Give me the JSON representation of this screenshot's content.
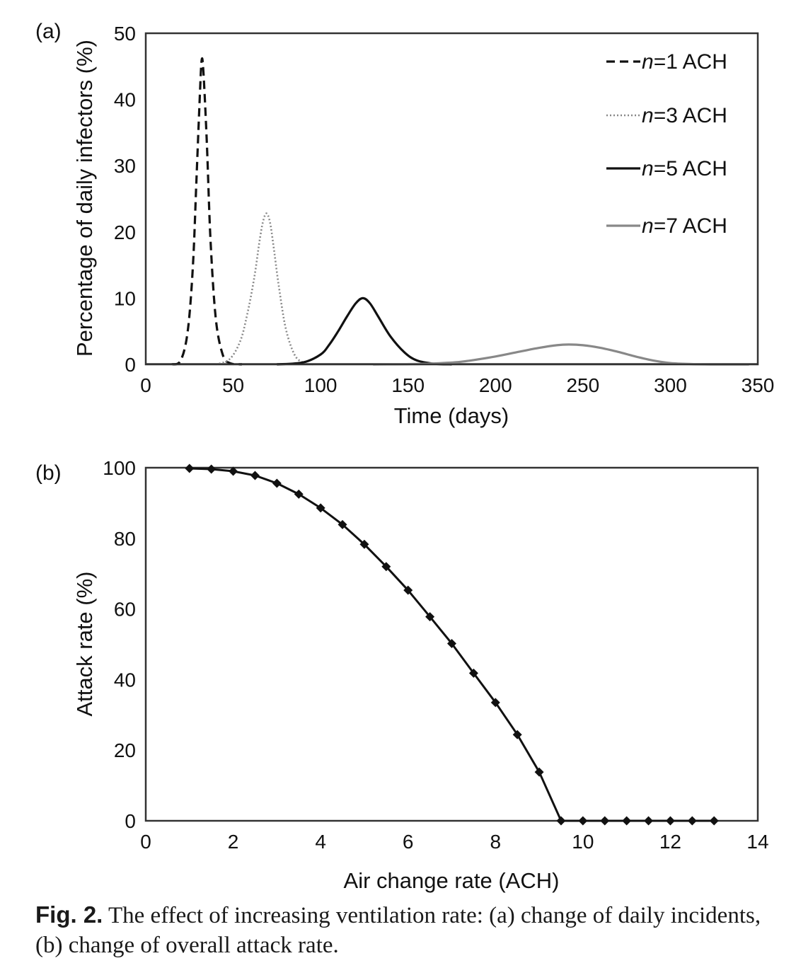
{
  "chart_data": [
    {
      "type": "line",
      "panel_label": "(a)",
      "xlabel": "Time (days)",
      "ylabel": "Percentage of daily infectors (%)",
      "xlim": [
        0,
        350
      ],
      "ylim": [
        0,
        50
      ],
      "xticks": [
        "0",
        "50",
        "100",
        "150",
        "200",
        "250",
        "300",
        "350"
      ],
      "yticks": [
        "0",
        "10",
        "20",
        "30",
        "40",
        "50"
      ],
      "grid": false,
      "legend": "top-right",
      "series": [
        {
          "name": "n=1 ACH",
          "name_italic": "n",
          "name_rest": "=1 ACH",
          "style": "dashed",
          "color": "#111111",
          "peak_x": 32,
          "peak_y": 46,
          "x": [
            15,
            20,
            24,
            27,
            29,
            31,
            32,
            33,
            35,
            37,
            40,
            44,
            48,
            55
          ],
          "y": [
            0,
            0.6,
            5,
            15,
            28,
            41,
            46,
            44,
            33,
            19,
            7,
            1.5,
            0.2,
            0
          ]
        },
        {
          "name": "n=3 ACH",
          "name_italic": "n",
          "name_rest": "=3 ACH",
          "style": "dotted",
          "color": "#888888",
          "x": [
            40,
            48,
            54,
            58,
            62,
            65,
            67,
            69,
            71,
            73,
            76,
            80,
            85,
            90,
            96
          ],
          "y": [
            0,
            0.8,
            3.5,
            7.5,
            13,
            18.5,
            21.5,
            22.8,
            21.5,
            18,
            12,
            5.5,
            1.5,
            0.3,
            0
          ]
        },
        {
          "name": "n=5 ACH",
          "name_italic": "n",
          "name_rest": "=5 ACH",
          "style": "solid",
          "color": "#111111",
          "x": [
            75,
            90,
            100,
            105,
            110,
            115,
            120,
            124,
            128,
            133,
            140,
            148,
            155,
            165,
            175
          ],
          "y": [
            0,
            0.3,
            1.5,
            3,
            5,
            7.2,
            9.2,
            10,
            9.3,
            7.2,
            4.2,
            1.8,
            0.6,
            0.1,
            0
          ]
        },
        {
          "name": "n=7 ACH",
          "name_italic": "n",
          "name_rest": "=7 ACH",
          "style": "solid",
          "color": "#888888",
          "x": [
            130,
            160,
            180,
            200,
            215,
            225,
            235,
            242,
            250,
            260,
            270,
            280,
            290,
            300,
            312,
            325,
            345
          ],
          "y": [
            0,
            0.1,
            0.4,
            1.2,
            2,
            2.5,
            2.9,
            3,
            2.9,
            2.5,
            1.9,
            1.2,
            0.6,
            0.2,
            0.05,
            0,
            0
          ]
        }
      ]
    },
    {
      "type": "line",
      "panel_label": "(b)",
      "xlabel": "Air change rate (ACH)",
      "ylabel": "Attack rate (%)",
      "xlim": [
        0,
        14
      ],
      "ylim": [
        0,
        100
      ],
      "xticks": [
        "0",
        "2",
        "4",
        "6",
        "8",
        "10",
        "12",
        "14"
      ],
      "yticks": [
        "0",
        "20",
        "40",
        "60",
        "80",
        "100"
      ],
      "grid": false,
      "markers": "diamond",
      "series": [
        {
          "x": [
            1,
            1.5,
            2,
            2.5,
            3,
            3.5,
            4,
            4.5,
            5,
            5.5,
            6,
            6.5,
            7,
            7.5,
            8,
            8.5,
            9,
            9.5,
            10,
            10.5,
            11,
            11.5,
            12,
            12.5,
            13
          ],
          "y": [
            99.8,
            99.6,
            99,
            97.8,
            95.6,
            92.5,
            88.6,
            83.9,
            78.3,
            72,
            65.3,
            57.8,
            50.2,
            41.8,
            33.5,
            24.4,
            13.8,
            0,
            0,
            0,
            0,
            0,
            0,
            0,
            0
          ],
          "color": "#111111"
        }
      ]
    }
  ],
  "caption": {
    "label": "Fig. 2.",
    "text": "The effect of increasing ventilation rate: (a) change of daily incidents, (b) change of overall attack rate."
  }
}
